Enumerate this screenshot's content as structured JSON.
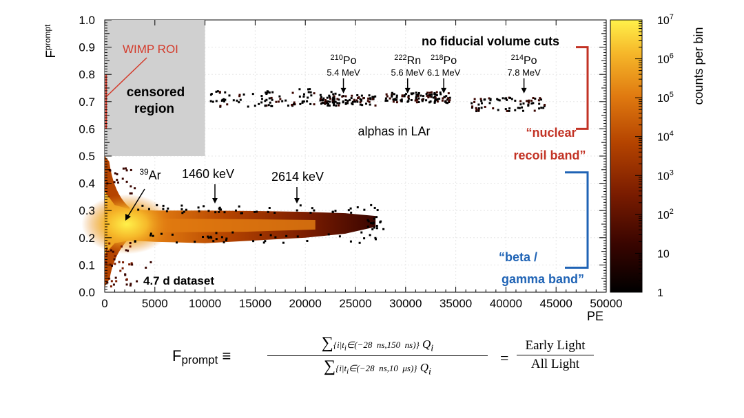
{
  "chart_data": {
    "type": "heatmap",
    "title": "no fiducial volume cuts",
    "xlabel": "PE",
    "ylabel": "F",
    "ylabel_sub": "prompt",
    "xlim": [
      0,
      50000
    ],
    "ylim": [
      0,
      1
    ],
    "x_ticks": [
      "0",
      "5000",
      "10000",
      "15000",
      "20000",
      "25000",
      "30000",
      "35000",
      "40000",
      "45000",
      "50000"
    ],
    "y_ticks": [
      "0.0",
      "0.1",
      "0.2",
      "0.3",
      "0.4",
      "0.5",
      "0.6",
      "0.7",
      "0.8",
      "0.9",
      "1.0"
    ],
    "colorbar": {
      "label": "counts per bin",
      "scale": "log",
      "range": [
        1,
        10000000
      ],
      "ticks": [
        {
          "base": "10",
          "exp": "7"
        },
        {
          "base": "10",
          "exp": "6"
        },
        {
          "base": "10",
          "exp": "5"
        },
        {
          "base": "10",
          "exp": "4"
        },
        {
          "base": "10",
          "exp": "3"
        },
        {
          "base": "10",
          "exp": "2"
        },
        {
          "base": "10",
          "exp": ""
        },
        {
          "base": "1",
          "exp": ""
        }
      ],
      "colors": [
        "#000000",
        "#3a0500",
        "#7a1c00",
        "#b54400",
        "#e07a10",
        "#f6b82a",
        "#fff14a"
      ]
    },
    "regions": {
      "censored": {
        "x": [
          0,
          10000
        ],
        "y": [
          0.5,
          1.0
        ],
        "label_line1": "censored",
        "label_line2": "region",
        "color": "#d0d0d0"
      },
      "wimp_roi": {
        "label": "WIMP ROI",
        "x": [
          0,
          400
        ],
        "y": [
          0.6,
          0.8
        ],
        "color": "#d43a2a"
      }
    },
    "bands": {
      "nuclear": {
        "label_line1": "“nuclear",
        "label_line2": "recoil band”",
        "y": [
          0.6,
          0.9
        ],
        "color": "#c23224"
      },
      "beta": {
        "label_line1": "“beta /",
        "label_line2": "gamma band”",
        "y": [
          0.09,
          0.44
        ],
        "color": "#1f63b5"
      }
    },
    "annotations": [
      {
        "iso": "210",
        "elem": "Po",
        "energy": "5.4 MeV",
        "x": 23800,
        "y": 0.725
      },
      {
        "iso": "222",
        "elem": "Rn",
        "energy": "5.6 MeV",
        "x": 30200,
        "y": 0.725
      },
      {
        "iso": "218",
        "elem": "Po",
        "energy": "6.1 MeV",
        "x": 33800,
        "y": 0.725
      },
      {
        "iso": "214",
        "elem": "Po",
        "energy": "7.8 MeV",
        "x": 41800,
        "y": 0.725
      }
    ],
    "labels": {
      "ar39_iso": "39",
      "ar39_elem": "Ar",
      "kev1460": "1460 keV",
      "kev2614": "2614 keV",
      "alphas": "alphas in LAr",
      "dataset": "4.7 d dataset"
    }
  },
  "formula": {
    "lhs_main": "F",
    "lhs_sub": "prompt",
    "equiv": "≡",
    "numerator": "∑{i|t_i∈(−28 ns,150 ns)} Q_i",
    "denominator": "∑{i|t_i∈(−28 ns,10 μs)} Q_i",
    "equals": "=",
    "rhs_num": "Early Light",
    "rhs_den": "All Light"
  }
}
